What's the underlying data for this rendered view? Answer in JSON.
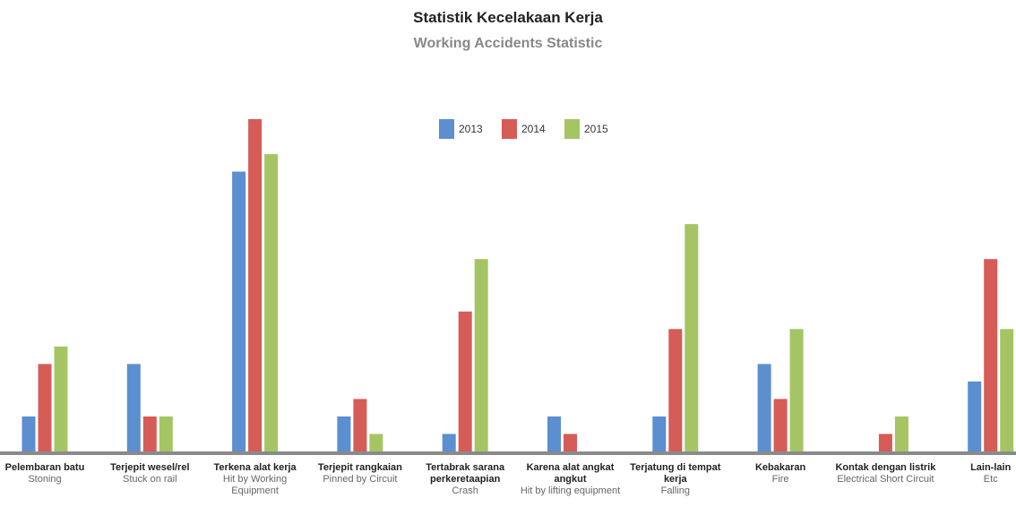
{
  "chart_data": {
    "type": "bar",
    "title": "Statistik Kecelakaan Kerja",
    "subtitle": "Working Accidents Statistic",
    "categories": [
      "Pelembaran batu",
      "Terjepit wesel/rel",
      "Terkena alat kerja",
      "Terjepit rangkaian",
      "Tertabrak sarana perkeretaapian",
      "Karena alat angkat angkut",
      "Terjatung di tempat kerja",
      "Kebakaran",
      "Kontak dengan listrik",
      "Lain-lain"
    ],
    "category_translations": [
      "Stoning",
      "Stuck on rail",
      "Hit by Working Equipment",
      "Pinned by Circuit",
      "Crash",
      "Hit by lifting equipment",
      "Falling",
      "Fire",
      "Electrical Short Circuit",
      "Etc"
    ],
    "series": [
      {
        "name": "2013",
        "color": "#5b8fd0",
        "values": [
          2,
          5,
          16,
          2,
          1,
          2,
          2,
          5,
          0,
          4
        ]
      },
      {
        "name": "2014",
        "color": "#d65c58",
        "values": [
          5,
          2,
          19,
          3,
          8,
          1,
          7,
          3,
          1,
          11
        ]
      },
      {
        "name": "2015",
        "color": "#a5c564",
        "values": [
          6,
          2,
          17,
          1,
          11,
          0,
          13,
          7,
          2,
          7
        ]
      }
    ]
  }
}
